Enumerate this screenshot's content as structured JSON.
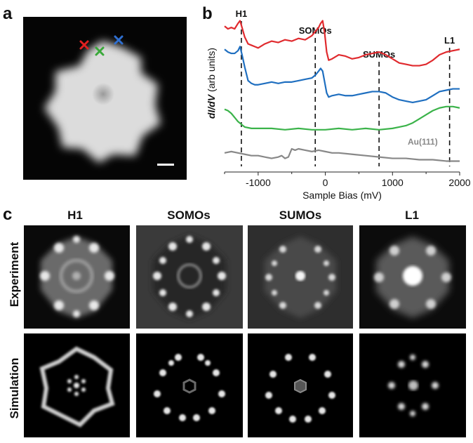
{
  "panels": {
    "a": "a",
    "b": "b",
    "c": "c"
  },
  "panel_c": {
    "columns": [
      "H1",
      "SOMOs",
      "SUMOs",
      "L1"
    ],
    "rows": [
      "Experiment",
      "Simulation"
    ]
  },
  "colors": {
    "red": "#e02a2e",
    "blue": "#1f6fc0",
    "green": "#3bb34a",
    "gray": "#888888",
    "marker_red": "#e02020",
    "marker_green": "#3aa93a",
    "marker_blue": "#2f6fd0"
  },
  "chart_data": {
    "type": "line",
    "xlabel": "Sample Bias (mV)",
    "ylabel": "dI/dV (arb units)",
    "xlim": [
      -1500,
      2000
    ],
    "xticks": [
      "-1000",
      "0",
      "1000",
      "2000"
    ],
    "xtick_values": [
      -1000,
      0,
      1000,
      2000
    ],
    "annotations": [
      {
        "label": "H1",
        "x": -1250
      },
      {
        "label": "SOMOs",
        "x": -150
      },
      {
        "label": "SUMOs",
        "x": 800
      },
      {
        "label": "L1",
        "x": 1850
      }
    ],
    "series": [
      {
        "color": "red",
        "x": [
          -1500,
          -1450,
          -1400,
          -1350,
          -1300,
          -1270,
          -1240,
          -1200,
          -1150,
          -1100,
          -1050,
          -1000,
          -900,
          -800,
          -700,
          -600,
          -500,
          -400,
          -300,
          -200,
          -150,
          -100,
          -70,
          -40,
          -10,
          20,
          50,
          100,
          200,
          300,
          400,
          500,
          600,
          700,
          800,
          900,
          1000,
          1100,
          1200,
          1300,
          1400,
          1500,
          1600,
          1700,
          1800,
          1900,
          2000
        ],
        "y": [
          9.7,
          9.5,
          9.6,
          9.5,
          9.9,
          10.1,
          9.6,
          8.9,
          8.4,
          8.3,
          8.2,
          8.1,
          8.4,
          8.6,
          8.5,
          8.7,
          8.6,
          8.8,
          8.7,
          9.0,
          9.3,
          9.6,
          9.9,
          10.1,
          9.2,
          7.8,
          7.2,
          7.3,
          7.6,
          7.5,
          7.3,
          7.4,
          7.6,
          7.7,
          7.8,
          7.6,
          7.3,
          7.0,
          6.9,
          6.8,
          6.8,
          6.9,
          7.2,
          7.6,
          7.8,
          7.9,
          8.0
        ]
      },
      {
        "color": "blue",
        "x": [
          -1500,
          -1450,
          -1400,
          -1350,
          -1300,
          -1270,
          -1240,
          -1200,
          -1150,
          -1100,
          -1050,
          -1000,
          -900,
          -800,
          -700,
          -600,
          -500,
          -400,
          -300,
          -200,
          -150,
          -100,
          -70,
          -40,
          -10,
          20,
          50,
          100,
          200,
          300,
          400,
          500,
          600,
          700,
          800,
          900,
          1000,
          1100,
          1200,
          1300,
          1400,
          1500,
          1600,
          1700,
          1800,
          1900,
          2000
        ],
        "y": [
          8.0,
          7.8,
          7.7,
          7.7,
          7.9,
          8.2,
          7.6,
          6.7,
          5.7,
          5.5,
          5.4,
          5.4,
          5.5,
          5.6,
          5.5,
          5.6,
          5.6,
          5.7,
          5.8,
          5.9,
          6.1,
          6.4,
          6.6,
          6.4,
          5.6,
          4.8,
          4.5,
          4.6,
          4.7,
          4.6,
          4.6,
          4.7,
          4.8,
          4.9,
          4.9,
          4.8,
          4.5,
          4.3,
          4.2,
          4.1,
          4.2,
          4.3,
          4.6,
          4.9,
          5.0,
          5.1,
          5.1
        ]
      },
      {
        "color": "green",
        "x": [
          -1500,
          -1450,
          -1400,
          -1350,
          -1300,
          -1250,
          -1200,
          -1100,
          -1000,
          -800,
          -600,
          -400,
          -200,
          0,
          200,
          400,
          600,
          800,
          1000,
          1100,
          1200,
          1300,
          1400,
          1500,
          1600,
          1700,
          1800,
          1900,
          2000
        ],
        "y": [
          3.6,
          3.5,
          3.3,
          3.0,
          2.7,
          2.5,
          2.3,
          2.2,
          2.2,
          2.2,
          2.1,
          2.2,
          2.1,
          2.1,
          2.2,
          2.1,
          2.2,
          2.1,
          2.2,
          2.3,
          2.4,
          2.6,
          2.9,
          3.2,
          3.5,
          3.7,
          3.8,
          3.8,
          3.7
        ]
      },
      {
        "color": "gray",
        "x": [
          -1500,
          -1400,
          -1300,
          -1200,
          -1100,
          -1000,
          -900,
          -800,
          -700,
          -650,
          -600,
          -550,
          -500,
          -450,
          -400,
          -300,
          -200,
          -100,
          0,
          100,
          200,
          400,
          600,
          800,
          1000,
          1200,
          1400,
          1600,
          1800,
          2000
        ],
        "y": [
          0.4,
          0.5,
          0.4,
          0.3,
          0.2,
          0.2,
          0.1,
          0.0,
          0.1,
          0.2,
          0.0,
          0.1,
          0.7,
          0.6,
          0.7,
          0.6,
          0.5,
          0.6,
          0.5,
          0.4,
          0.4,
          0.3,
          0.2,
          0.1,
          0.0,
          0.0,
          -0.1,
          -0.1,
          -0.2,
          -0.2
        ]
      }
    ],
    "legend_text": "Au(111)",
    "legend_color": "gray"
  }
}
